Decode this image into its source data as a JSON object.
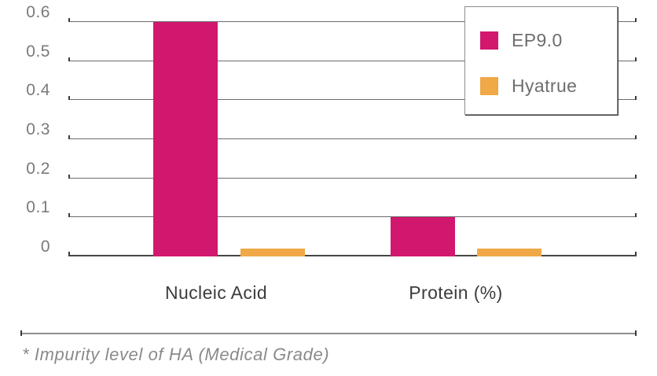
{
  "chart_data": {
    "type": "bar",
    "title": "",
    "xlabel": "",
    "ylabel": "",
    "categories": [
      "Nucleic Acid",
      "Protein (%)"
    ],
    "series": [
      {
        "name": "EP9.0",
        "color": "#d2176e",
        "values": [
          0.6,
          0.1
        ]
      },
      {
        "name": "Hyatrue",
        "color": "#f0a946",
        "values": [
          0.02,
          0.02
        ]
      }
    ],
    "ylim": [
      0,
      0.6
    ],
    "yticks": [
      {
        "value": 0.0,
        "label": "0"
      },
      {
        "value": 0.1,
        "label": "0.1"
      },
      {
        "value": 0.2,
        "label": "0.2"
      },
      {
        "value": 0.3,
        "label": "0.3"
      },
      {
        "value": 0.4,
        "label": "0.4"
      },
      {
        "value": 0.5,
        "label": "0.5"
      },
      {
        "value": 0.6,
        "label": "0.6"
      }
    ],
    "grid": "horizontal",
    "legend_position": "top-right"
  },
  "footnote": {
    "text": "* Impurity level of HA (Medical Grade)"
  },
  "colors": {
    "series_ep90": "#d2176e",
    "series_hyatrue": "#f0a946",
    "gridline": "#6b6b6b",
    "axis_baseline": "#474747",
    "ytick_text": "#7a7a7a",
    "xtick_text": "#3c3c3c",
    "legend_text": "#6e6e6e",
    "footnote_text": "#8a8a8a",
    "background": "#ffffff"
  }
}
